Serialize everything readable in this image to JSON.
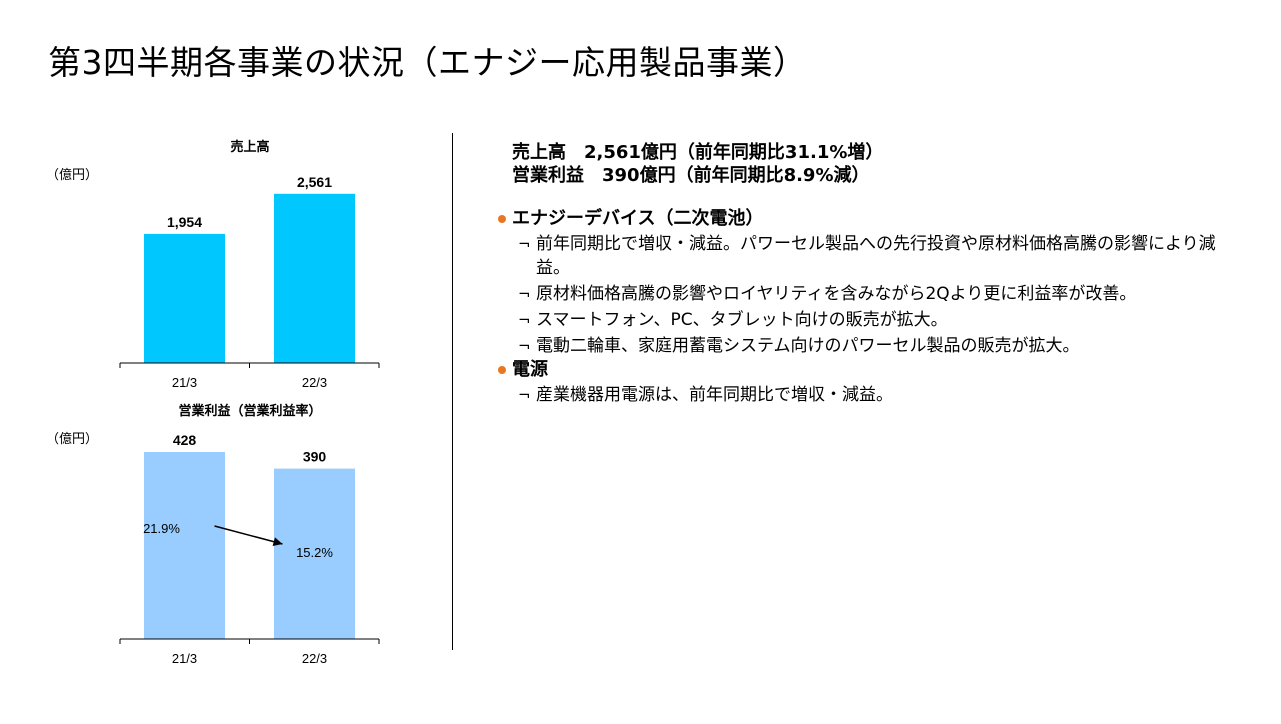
{
  "title": "第3四半期各事業の状況（エナジー応用製品事業）",
  "chart_data": [
    {
      "type": "bar",
      "title": "売上高",
      "unit": "（億円）",
      "categories": [
        "21/3",
        "22/3"
      ],
      "values": [
        1954,
        2561
      ],
      "value_labels": [
        "1,954",
        "2,561"
      ],
      "color": "#00c8ff",
      "ylim": [
        0,
        2800
      ]
    },
    {
      "type": "bar",
      "title": "営業利益（営業利益率）",
      "unit": "（億円）",
      "categories": [
        "21/3",
        "22/3"
      ],
      "values": [
        428,
        390
      ],
      "value_labels": [
        "428",
        "390"
      ],
      "margin_labels": [
        "21.9%",
        "15.2%"
      ],
      "color": "#99cdff",
      "ylim": [
        0,
        428
      ]
    }
  ],
  "summary": {
    "sales": "売上高　2,561億円（前年同期比31.1%増）",
    "profit": "営業利益　390億円（前年同期比8.9%減）"
  },
  "sections": [
    {
      "heading": "エナジーデバイス（二次電池）",
      "items": [
        "前年同期比で増収・減益。パワーセル製品への先行投資や原材料価格高騰の影響により減益。",
        "原材料価格高騰の影響やロイヤリティを含みながら2Qより更に利益率が改善。",
        "スマートフォン、PC、タブレット向けの販売が拡大。",
        "電動二輪車、家庭用蓄電システム向けのパワーセル製品の販売が拡大。"
      ]
    },
    {
      "heading": "電源",
      "items": [
        "産業機器用電源は、前年同期比で増収・減益。"
      ]
    }
  ],
  "colors": {
    "bullet": "#e87722",
    "sales_bar": "#00c8ff",
    "profit_bar": "#99cdff"
  },
  "item_mark": "¬"
}
